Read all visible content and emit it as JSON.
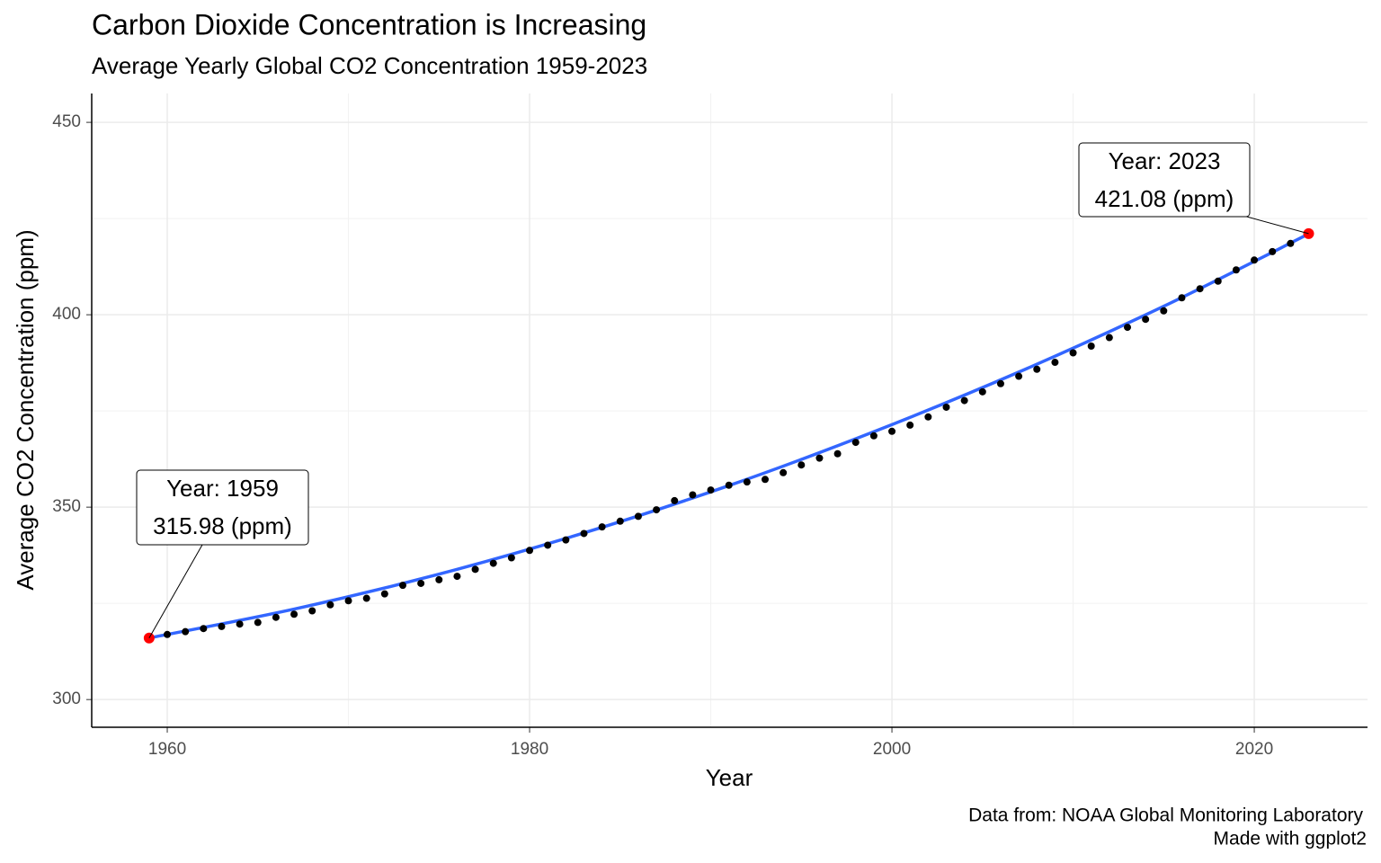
{
  "chart_data": {
    "type": "scatter",
    "title": "Carbon Dioxide Concentration is Increasing",
    "subtitle": "Average Yearly Global CO2 Concentration 1959-2023",
    "x_label": "Year",
    "y_label": "Average CO2 Concentration (ppm)",
    "caption": [
      "Data from: NOAA Global Monitoring Laboratory",
      "Made with ggplot2"
    ],
    "x": [
      1959,
      1960,
      1961,
      1962,
      1963,
      1964,
      1965,
      1966,
      1967,
      1968,
      1969,
      1970,
      1971,
      1972,
      1973,
      1974,
      1975,
      1976,
      1977,
      1978,
      1979,
      1980,
      1981,
      1982,
      1983,
      1984,
      1985,
      1986,
      1987,
      1988,
      1989,
      1990,
      1991,
      1992,
      1993,
      1994,
      1995,
      1996,
      1997,
      1998,
      1999,
      2000,
      2001,
      2002,
      2003,
      2004,
      2005,
      2006,
      2007,
      2008,
      2009,
      2010,
      2011,
      2012,
      2013,
      2014,
      2015,
      2016,
      2017,
      2018,
      2019,
      2020,
      2021,
      2022,
      2023
    ],
    "values": [
      315.98,
      316.91,
      317.64,
      318.45,
      318.99,
      319.62,
      320.04,
      321.37,
      322.18,
      323.05,
      324.62,
      325.68,
      326.32,
      327.46,
      329.68,
      330.19,
      331.13,
      332.03,
      333.84,
      335.41,
      336.84,
      338.76,
      340.12,
      341.48,
      343.15,
      344.87,
      346.35,
      347.61,
      349.31,
      351.69,
      353.2,
      354.45,
      355.7,
      356.54,
      357.21,
      358.96,
      360.97,
      362.74,
      363.88,
      366.84,
      368.54,
      369.71,
      371.32,
      373.45,
      375.98,
      377.7,
      379.98,
      382.09,
      384.02,
      385.83,
      387.64,
      390.1,
      391.85,
      394.06,
      396.74,
      398.81,
      401.01,
      404.41,
      406.76,
      408.72,
      411.65,
      414.21,
      416.41,
      418.53,
      421.08
    ],
    "color": "#000000",
    "highlight_color": "#ff0000",
    "trend": {
      "x": [
        1959,
        1967,
        1975,
        1983,
        1991,
        1999,
        2007,
        2015,
        2023
      ],
      "values": [
        316.0,
        323.5,
        332.6,
        343.3,
        355.6,
        369.6,
        385.1,
        402.2,
        421.0
      ],
      "color": "#3366ff"
    },
    "annotations": [
      [
        "Year: 1959",
        "315.98 (ppm)"
      ],
      [
        "Year: 2023",
        "421.08 (ppm)"
      ]
    ],
    "xlim": [
      1955.83,
      2026.25
    ],
    "ylim": [
      292.8,
      457.5
    ],
    "xticks": [
      1960,
      1980,
      2000,
      2020
    ],
    "yticks": [
      300,
      350,
      400,
      450
    ],
    "x_minor_grid": [
      1970,
      1990,
      2010
    ],
    "y_minor_grid": [
      325,
      375,
      425
    ],
    "grid": true
  }
}
